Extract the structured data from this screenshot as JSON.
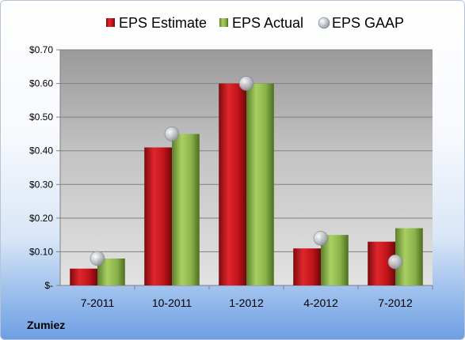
{
  "footer": {
    "company": "Zumiez"
  },
  "chart_data": {
    "type": "bar",
    "title": "",
    "xlabel": "",
    "ylabel": "",
    "categories": [
      "7-2011",
      "10-2011",
      "1-2012",
      "4-2012",
      "7-2012"
    ],
    "series": [
      {
        "name": "EPS Estimate",
        "kind": "bar",
        "color": "#c0141a",
        "values": [
          0.05,
          0.41,
          0.6,
          0.11,
          0.13
        ]
      },
      {
        "name": "EPS Actual",
        "kind": "bar",
        "color": "#8ab44a",
        "values": [
          0.08,
          0.45,
          0.6,
          0.15,
          0.17
        ]
      },
      {
        "name": "EPS GAAP",
        "kind": "marker",
        "color": "#b4b8c0",
        "values": [
          0.08,
          0.45,
          0.6,
          0.14,
          0.07
        ]
      }
    ],
    "ylim": [
      0,
      0.7
    ],
    "yticks": [
      0,
      0.1,
      0.2,
      0.3,
      0.4,
      0.5,
      0.6,
      0.7
    ],
    "ytick_labels": [
      "$-",
      "$0.10",
      "$0.20",
      "$0.30",
      "$0.40",
      "$0.50",
      "$0.60",
      "$0.70"
    ],
    "grid": true,
    "legend_position": "top"
  }
}
